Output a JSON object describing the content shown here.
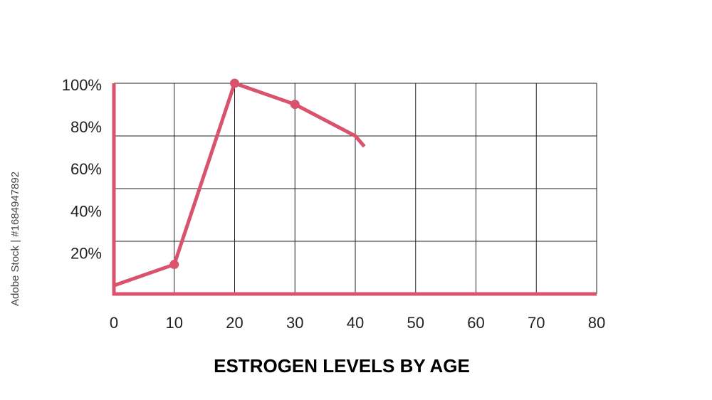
{
  "chart_data": {
    "type": "line",
    "title": "ESTROGEN LEVELS BY AGE",
    "watermark": "Adobe Stock | #1684947892",
    "x": [
      0,
      10,
      20,
      30,
      40,
      41.5
    ],
    "series": [
      {
        "name": "Estrogen",
        "color": "#d9536c",
        "values": [
          4,
          14,
          100,
          90,
          75,
          70
        ]
      }
    ],
    "xlim": [
      0,
      80
    ],
    "xticks": [
      0,
      10,
      20,
      30,
      40,
      50,
      60,
      70,
      80
    ],
    "ylim": [
      0,
      100
    ],
    "yticks": [
      {
        "value": 20,
        "label": "20%"
      },
      {
        "value": 40,
        "label": "40%"
      },
      {
        "value": 60,
        "label": "60%"
      },
      {
        "value": 80,
        "label": "80%"
      },
      {
        "value": 100,
        "label": "100%"
      }
    ],
    "ygrid": [
      0,
      25,
      50,
      75,
      100
    ],
    "grid": true
  }
}
